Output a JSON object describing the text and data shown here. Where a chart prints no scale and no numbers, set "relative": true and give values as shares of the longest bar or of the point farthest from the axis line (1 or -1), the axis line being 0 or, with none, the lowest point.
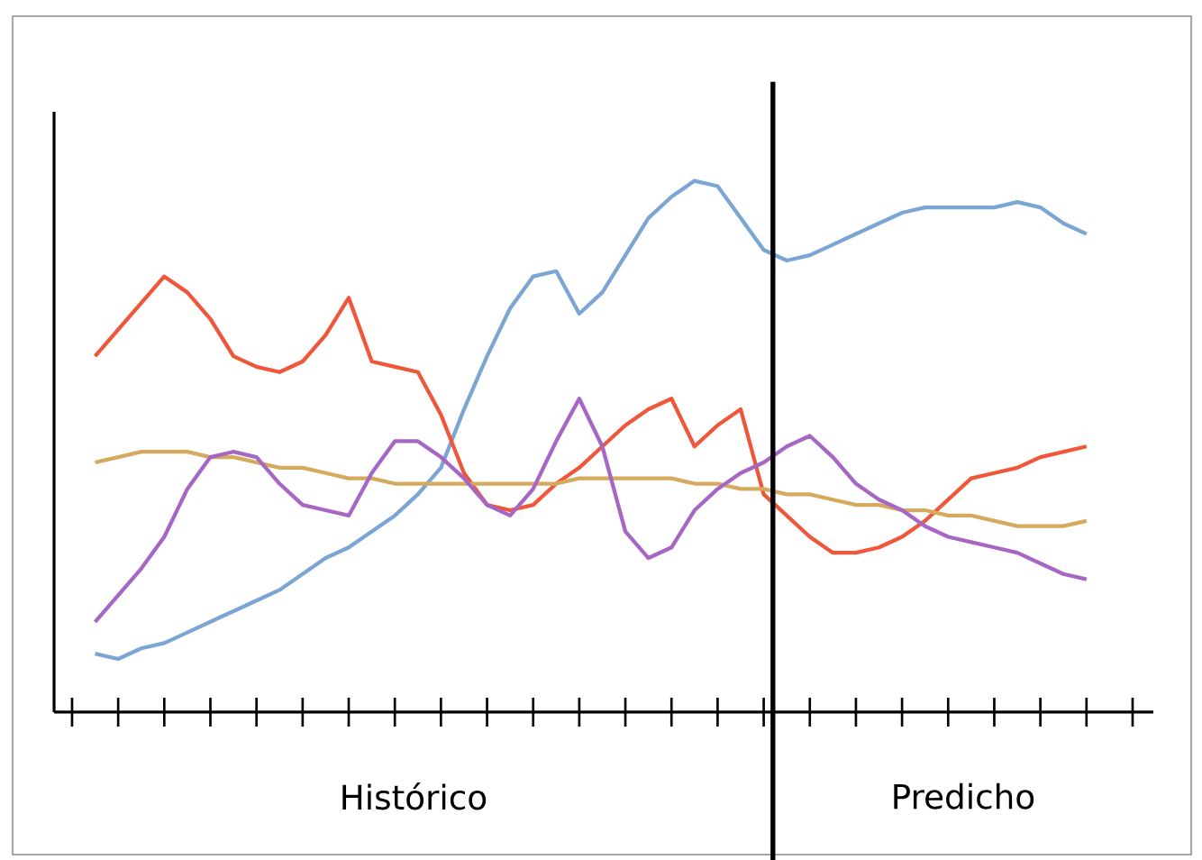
{
  "chart_data": {
    "type": "line",
    "relative": true,
    "marker": "none",
    "line_style": "solid",
    "categories": [
      null,
      null,
      null,
      null,
      null,
      null,
      null,
      null,
      null,
      null,
      null,
      null,
      null,
      null,
      null,
      null,
      null,
      null,
      null,
      null,
      null,
      null,
      null,
      null,
      null,
      null,
      null,
      null,
      null,
      null,
      null,
      null,
      null,
      null,
      null,
      null,
      null,
      null,
      null,
      null,
      null,
      null,
      null,
      null,
      null,
      null,
      null
    ],
    "series": [
      {
        "color": "#7ba6d3",
        "values": [
          null,
          0.11,
          0.1,
          0.12,
          0.13,
          0.15,
          0.17,
          0.19,
          0.21,
          0.23,
          0.26,
          0.29,
          0.31,
          0.34,
          0.37,
          0.41,
          0.46,
          0.57,
          0.67,
          0.76,
          0.82,
          0.83,
          0.75,
          0.79,
          0.86,
          0.93,
          0.97,
          1,
          0.99,
          0.93,
          0.87,
          0.85,
          0.86,
          0.88,
          0.9,
          0.92,
          0.94,
          0.95,
          0.95,
          0.95,
          0.95,
          0.96,
          0.95,
          0.92,
          0.9,
          null,
          null
        ]
      },
      {
        "color": "#f0563a",
        "values": [
          null,
          0.67,
          0.72,
          0.77,
          0.82,
          0.79,
          0.74,
          0.67,
          0.65,
          0.64,
          0.66,
          0.71,
          0.78,
          0.66,
          0.65,
          0.64,
          0.56,
          0.45,
          0.39,
          0.38,
          0.39,
          0.43,
          0.46,
          0.5,
          0.54,
          0.57,
          0.59,
          0.5,
          0.54,
          0.57,
          0.41,
          0.37,
          0.33,
          0.3,
          0.3,
          0.31,
          0.33,
          0.36,
          0.4,
          0.44,
          0.45,
          0.46,
          0.48,
          0.49,
          0.5,
          null,
          null
        ]
      },
      {
        "color": "#d6aa5e",
        "values": [
          null,
          0.47,
          0.48,
          0.49,
          0.49,
          0.49,
          0.48,
          0.48,
          0.47,
          0.46,
          0.46,
          0.45,
          0.44,
          0.44,
          0.43,
          0.43,
          0.43,
          0.43,
          0.43,
          0.43,
          0.43,
          0.43,
          0.44,
          0.44,
          0.44,
          0.44,
          0.44,
          0.43,
          0.43,
          0.42,
          0.42,
          0.41,
          0.41,
          0.4,
          0.39,
          0.39,
          0.38,
          0.38,
          0.37,
          0.37,
          0.36,
          0.35,
          0.35,
          0.35,
          0.36,
          null,
          null
        ]
      },
      {
        "color": "#a666c4",
        "values": [
          null,
          0.17,
          0.22,
          0.27,
          0.33,
          0.42,
          0.48,
          0.49,
          0.48,
          0.43,
          0.39,
          0.38,
          0.37,
          0.45,
          0.51,
          0.51,
          0.48,
          0.44,
          0.39,
          0.37,
          0.42,
          0.51,
          0.59,
          0.5,
          0.34,
          0.29,
          0.31,
          0.38,
          0.42,
          0.45,
          0.47,
          0.5,
          0.52,
          0.48,
          0.43,
          0.4,
          0.38,
          0.35,
          0.33,
          0.32,
          0.31,
          0.3,
          0.28,
          0.26,
          0.25,
          null,
          null
        ]
      }
    ],
    "annotations": [
      "Histórico",
      "Predicho"
    ]
  }
}
